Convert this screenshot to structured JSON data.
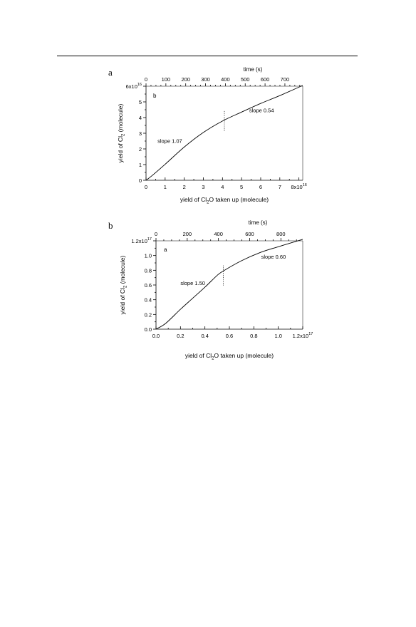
{
  "figure": {
    "panels": [
      "a",
      "b"
    ]
  },
  "chart_data": [
    {
      "type": "line",
      "panel_label": "a",
      "inner_label": "b",
      "xlabel": "yield of Cl₂O taken up (molecule)",
      "ylabel": "yield of Cl₂ (molecule)",
      "top_axis_label": "time (s)",
      "xlim": [
        0,
        8.2e+16
      ],
      "ylim": [
        0,
        6e+16
      ],
      "top_xlim": [
        0,
        790
      ],
      "x_tick_labels": [
        "0",
        "1",
        "2",
        "3",
        "4",
        "5",
        "6",
        "7",
        "8x10¹⁶"
      ],
      "y_tick_labels": [
        "0",
        "1",
        "2",
        "3",
        "4",
        "5",
        "6x10¹⁶"
      ],
      "top_tick_labels": [
        "0",
        "100",
        "200",
        "300",
        "400",
        "500",
        "600",
        "700"
      ],
      "series": [
        {
          "x": [
            0,
            3000000000000000.0,
            1e+16,
            2e+16,
            3e+16,
            4e+16,
            5e+16,
            6e+16,
            7e+16,
            8.2e+16
          ],
          "y": [
            0,
            2800000000000000.0,
            1.02e+16,
            2.12e+16,
            3.05e+16,
            3.78e+16,
            4.35e+16,
            4.9e+16,
            5.4e+16,
            6.05e+16
          ]
        }
      ],
      "annotations": [
        {
          "text": "slope 1.07",
          "x": 6000000000000000.0,
          "y": 2.38e+16
        },
        {
          "text": "slope 0.54",
          "x": 5.4e+16,
          "y": 4.35e+16
        }
      ],
      "divider_x": 4.1e+16
    },
    {
      "type": "line",
      "panel_label": "b",
      "inner_label": "a",
      "xlabel": "yield of Cl₂O taken up (molecule)",
      "ylabel": "yield of Cl₂ (molecule)",
      "top_axis_label": "time (s)",
      "xlim": [
        0,
        1.2e+17
      ],
      "ylim": [
        0,
        1.2e+17
      ],
      "top_xlim": [
        0,
        940
      ],
      "x_tick_labels": [
        "0.0",
        "0.2",
        "0.4",
        "0.6",
        "0.8",
        "1.0",
        "1.2x10¹⁷"
      ],
      "y_tick_labels": [
        "0.0",
        "0.2",
        "0.4",
        "0.6",
        "0.8",
        "1.0",
        "1.2x10¹⁷"
      ],
      "top_tick_labels": [
        "0",
        "200",
        "400",
        "600",
        "800"
      ],
      "series": [
        {
          "x": [
            0,
            8000000000000000.0,
            2e+16,
            3e+16,
            4e+16,
            5e+16,
            5.5e+16,
            7e+16,
            8.5e+16,
            1e+17,
            1.2e+17
          ],
          "y": [
            0,
            8000000000000000.0,
            2.7e+16,
            4.2e+16,
            5.7e+16,
            7.3e+16,
            7.9e+16,
            9.3e+16,
            1.04e+17,
            1.12e+17,
            1.22e+17
          ]
        }
      ],
      "annotations": [
        {
          "text": "slope 1.50",
          "x": 2e+16,
          "y": 6e+16
        },
        {
          "text": "slope 0.60",
          "x": 8.6e+16,
          "y": 9.6e+16
        }
      ],
      "divider_x": 5.5e+16
    }
  ]
}
